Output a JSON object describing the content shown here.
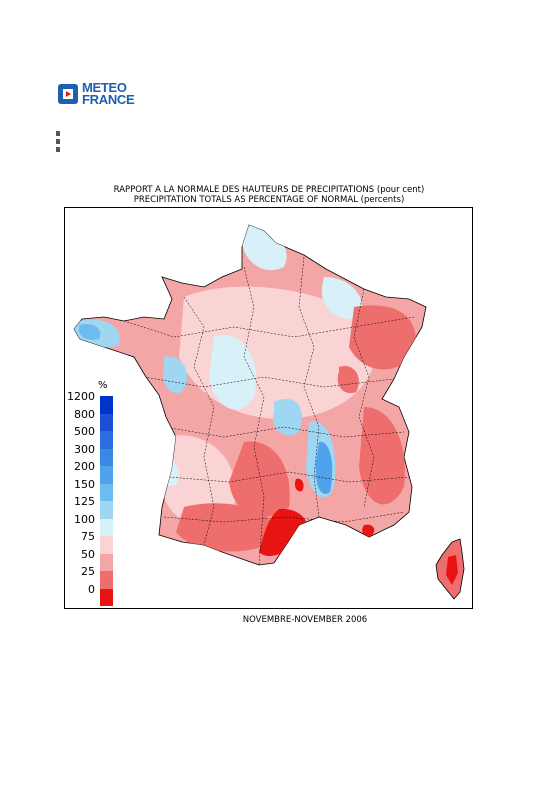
{
  "logo": {
    "line1": "METEO",
    "line2": "FRANCE",
    "brand_color": "#1f5fb0"
  },
  "titles": {
    "fr": "RAPPORT A LA NORMALE DES HAUTEURS DE PRECIPITATIONS (pour cent)",
    "en": "PRECIPITATION TOTALS AS PERCENTAGE OF NORMAL (percents)"
  },
  "footer": "NOVEMBRE-NOVEMBER 2006",
  "legend": {
    "unit": "%",
    "classes": [
      {
        "label": "1200",
        "color": "#0033cc"
      },
      {
        "label": "800",
        "color": "#1a4fd6"
      },
      {
        "label": "500",
        "color": "#2a6ee0"
      },
      {
        "label": "300",
        "color": "#3a88e6"
      },
      {
        "label": "200",
        "color": "#4ea3ec"
      },
      {
        "label": "150",
        "color": "#6cbcf0"
      },
      {
        "label": "125",
        "color": "#9fd6f2"
      },
      {
        "label": "100",
        "color": "#d8f0f8"
      },
      {
        "label": "75",
        "color": "#fad4d4"
      },
      {
        "label": "50",
        "color": "#f4a6a6"
      },
      {
        "label": "25",
        "color": "#ee6e6e"
      },
      {
        "label": "0",
        "color": "#e81414"
      }
    ]
  }
}
